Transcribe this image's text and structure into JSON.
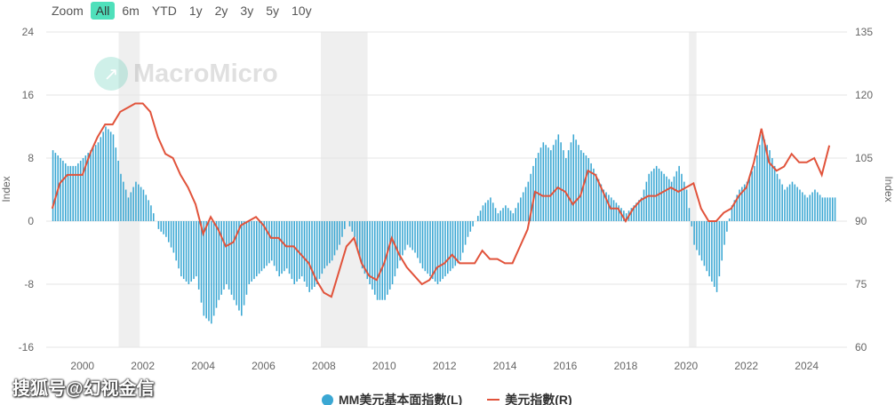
{
  "zoom": {
    "label": "Zoom",
    "buttons": [
      "All",
      "6m",
      "YTD",
      "1y",
      "2y",
      "3y",
      "5y",
      "10y"
    ],
    "active": "All"
  },
  "watermark": "MacroMicro",
  "credit": "搜狐号@幻视金信",
  "colors": {
    "bars": "#3aa7d3",
    "line": "#e1533b",
    "recession": "#efefef"
  },
  "chart_data": {
    "type": "bar+line",
    "x_start": 1999.0,
    "x_step": 0.25,
    "x_ticks": [
      "2000",
      "2002",
      "2004",
      "2006",
      "2008",
      "2010",
      "2012",
      "2014",
      "2016",
      "2018",
      "2020",
      "2022",
      "2024"
    ],
    "xlim": [
      1998.8,
      2025.1
    ],
    "left_axis": {
      "label": "Index",
      "ylim": [
        -16,
        24
      ],
      "ticks": [
        "24",
        "16",
        "8",
        "0",
        "-8",
        "-16"
      ]
    },
    "right_axis": {
      "label": "Index",
      "ylim": [
        60,
        135
      ],
      "ticks": [
        "135",
        "120",
        "105",
        "90",
        "75",
        "60"
      ]
    },
    "recessions": [
      [
        2001.2,
        2001.9
      ],
      [
        2007.9,
        2009.45
      ],
      [
        2020.1,
        2020.35
      ]
    ],
    "series": [
      {
        "name": "MM美元基本面指數(L)",
        "type": "bar",
        "axis": "left",
        "values": [
          9,
          8,
          7,
          7,
          8,
          9,
          10,
          12,
          11,
          6,
          3,
          5,
          4,
          2,
          -1,
          -2,
          -4,
          -7,
          -8,
          -7,
          -12,
          -13,
          -10,
          -8,
          -10,
          -12,
          -8,
          -7,
          -6,
          -5,
          -7,
          -6,
          -8,
          -7,
          -9,
          -8,
          -6,
          -5,
          -3,
          0,
          -2,
          -6,
          -8,
          -10,
          -10,
          -8,
          -5,
          -3,
          -4,
          -6,
          -7,
          -8,
          -7,
          -6,
          -5,
          -2,
          0,
          2,
          3,
          1,
          2,
          1,
          3,
          5,
          8,
          10,
          9,
          11,
          8,
          11,
          9,
          8,
          6,
          4,
          3,
          2,
          1,
          2,
          3,
          6,
          7,
          6,
          5,
          7,
          4,
          -3,
          -5,
          -7,
          -9,
          -3,
          2,
          4,
          5,
          7,
          11,
          9,
          6,
          4,
          5,
          4,
          3,
          4,
          3,
          3
        ]
      },
      {
        "name": "美元指數(R)",
        "type": "line",
        "axis": "right",
        "values": [
          93,
          99,
          101,
          101,
          101,
          106,
          110,
          113,
          113,
          116,
          117,
          118,
          118,
          116,
          110,
          106,
          105,
          101,
          98,
          94,
          87,
          91,
          88,
          84,
          85,
          89,
          90,
          91,
          89,
          86,
          86,
          84,
          84,
          82,
          80,
          76,
          73,
          72,
          78,
          84,
          86,
          80,
          77,
          76,
          80,
          86,
          82,
          79,
          77,
          75,
          76,
          79,
          80,
          82,
          80,
          80,
          80,
          83,
          81,
          81,
          80,
          80,
          84,
          88,
          97,
          96,
          96,
          98,
          97,
          94,
          96,
          102,
          101,
          97,
          93,
          93,
          90,
          93,
          95,
          96,
          96,
          97,
          98,
          97,
          98,
          99,
          93,
          90,
          90,
          92,
          93,
          96,
          98,
          104,
          112,
          104,
          102,
          103,
          106,
          104,
          104,
          105,
          101,
          108
        ]
      }
    ]
  }
}
